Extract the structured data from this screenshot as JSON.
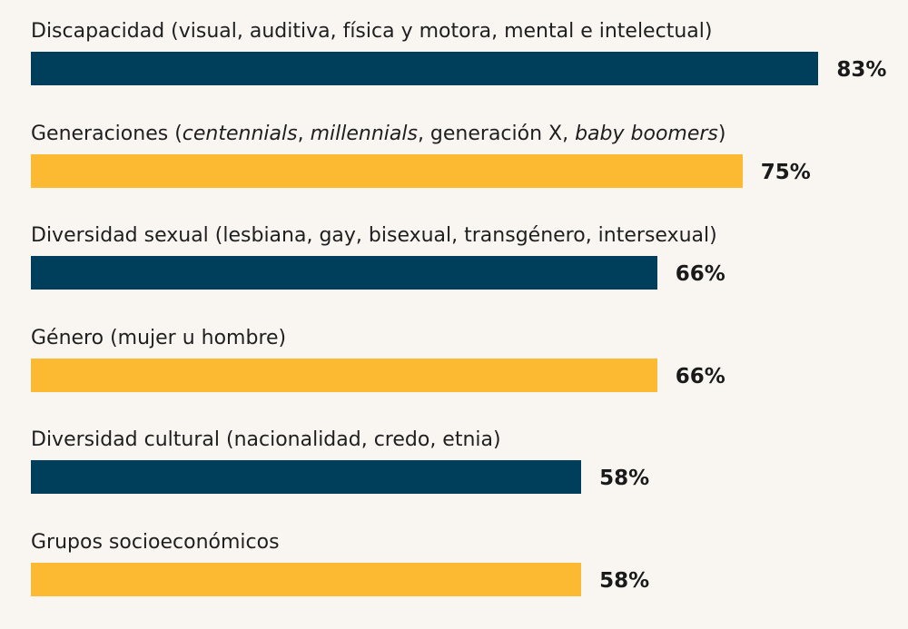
{
  "chart_data": {
    "type": "bar",
    "orientation": "horizontal",
    "categories": [
      "Discapacidad (visual, auditiva, física y motora, mental e intelectual)",
      "Generaciones (centennials, millennials, generación X, baby boomers)",
      "Diversidad sexual (lesbiana, gay, bisexual, transgénero, intersexual)",
      "Género (mujer u hombre)",
      "Diversidad cultural (nacionalidad, credo, etnia)",
      "Grupos socioeconómicos"
    ],
    "category_parts": [
      [
        {
          "text": "Discapacidad (visual, auditiva, física y motora, mental e intelectual)",
          "italic": false
        }
      ],
      [
        {
          "text": "Generaciones (",
          "italic": false
        },
        {
          "text": "centennials",
          "italic": true
        },
        {
          "text": ", ",
          "italic": false
        },
        {
          "text": "millennials",
          "italic": true
        },
        {
          "text": ", generación X, ",
          "italic": false
        },
        {
          "text": "baby boomers",
          "italic": true
        },
        {
          "text": ")",
          "italic": false
        }
      ],
      [
        {
          "text": "Diversidad sexual (lesbiana, gay, bisexual, transgénero, intersexual)",
          "italic": false
        }
      ],
      [
        {
          "text": "Género (mujer u hombre)",
          "italic": false
        }
      ],
      [
        {
          "text": "Diversidad cultural (nacionalidad, credo, etnia)",
          "italic": false
        }
      ],
      [
        {
          "text": "Grupos socioeconómicos",
          "italic": false
        }
      ]
    ],
    "values": [
      83,
      75,
      66,
      66,
      58,
      58
    ],
    "value_labels": [
      "83%",
      "75%",
      "66%",
      "66%",
      "58%",
      "58%"
    ],
    "unit": "%",
    "bar_colors": [
      "#003f5c",
      "#fbba32",
      "#003f5c",
      "#fbba32",
      "#003f5c",
      "#fbba32"
    ],
    "grid": false,
    "legend": "none"
  }
}
